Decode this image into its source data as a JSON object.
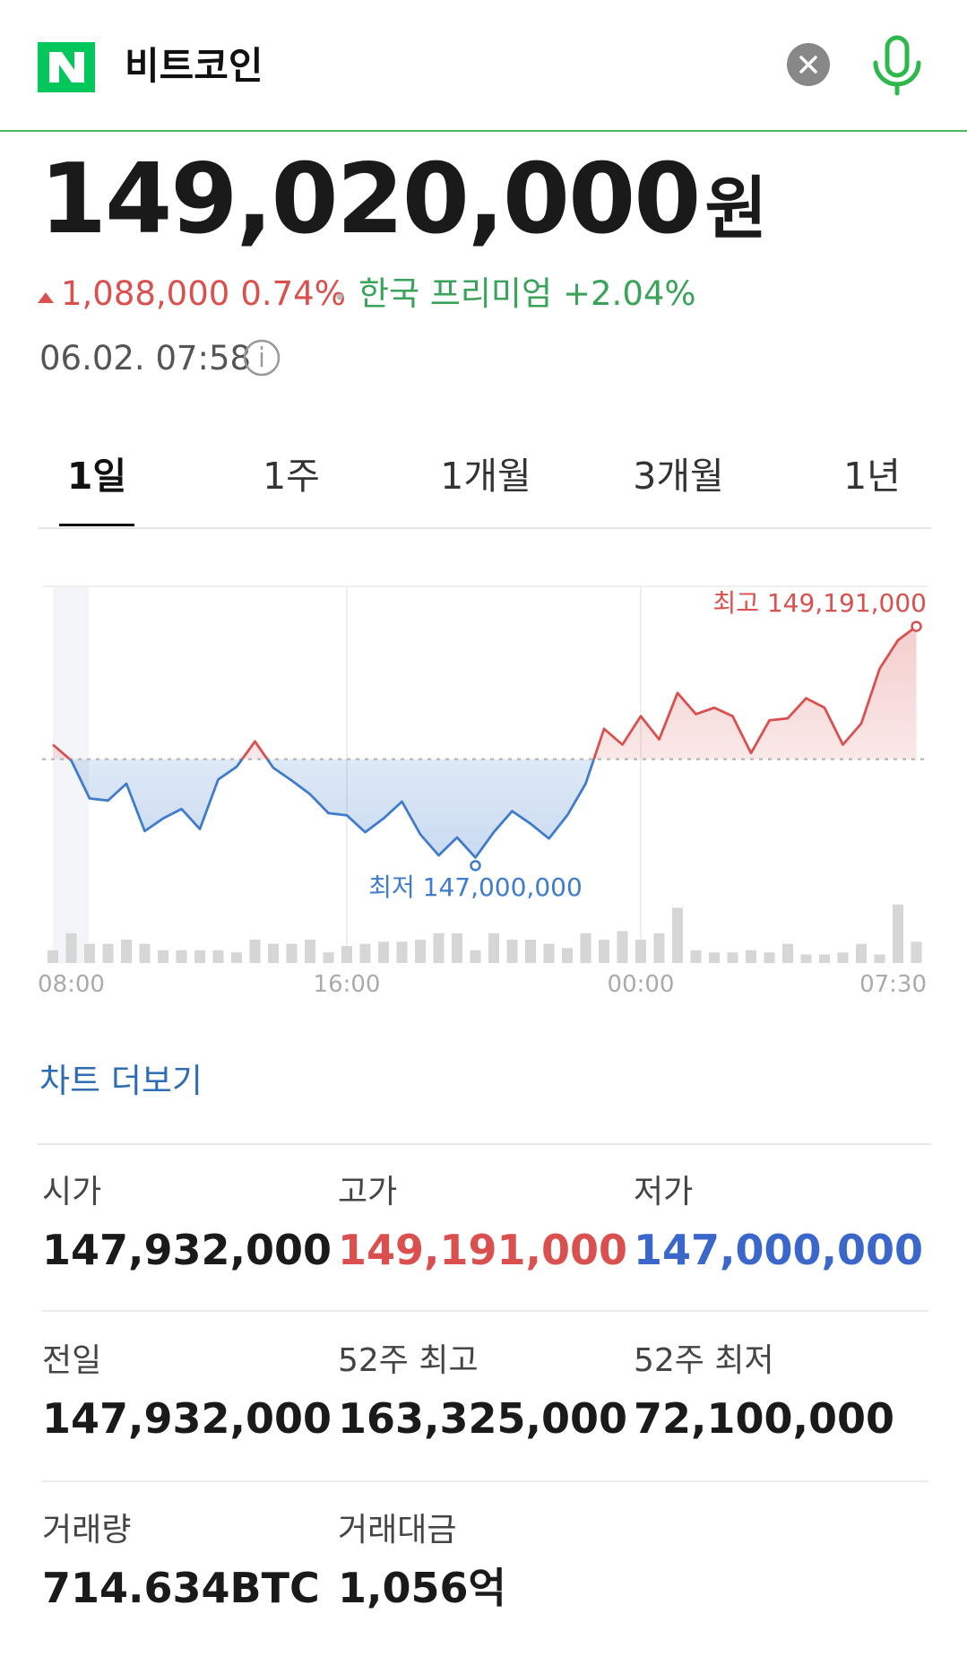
{
  "header": {
    "query": "비트코인"
  },
  "price": {
    "value": "149,020,000",
    "unit": "원",
    "change": "1,088,000",
    "change_rate": "0.74%",
    "premium_label": "한국 프리미엄",
    "premium": "+2.04%",
    "timestamp": "06.02. 07:58"
  },
  "tabs": [
    "1일",
    "1주",
    "1개월",
    "3개월",
    "1년"
  ],
  "selected_tab": 0,
  "chart_data": {
    "type": "line",
    "categories": [
      null,
      "08:00",
      null,
      null,
      null,
      null,
      null,
      null,
      null,
      null,
      null,
      null,
      null,
      null,
      null,
      null,
      "16:00",
      null,
      null,
      null,
      null,
      null,
      null,
      null,
      null,
      null,
      null,
      null,
      null,
      null,
      null,
      null,
      "00:00",
      null,
      null,
      null,
      null,
      null,
      null,
      null,
      null,
      null,
      null,
      null,
      null,
      null,
      null,
      "07:30"
    ],
    "values": [
      148070000,
      147920000,
      147560000,
      147540000,
      147700000,
      147250000,
      147370000,
      147460000,
      147270000,
      147740000,
      147860000,
      148100000,
      147850000,
      147730000,
      147600000,
      147420000,
      147400000,
      147240000,
      147370000,
      147530000,
      147220000,
      147020000,
      147190000,
      147000000,
      147240000,
      147440000,
      147320000,
      147180000,
      147400000,
      147700000,
      148220000,
      148070000,
      148340000,
      148120000,
      148560000,
      148360000,
      148420000,
      148340000,
      147990000,
      148300000,
      148320000,
      148510000,
      148420000,
      148070000,
      148270000,
      148790000,
      149060000,
      149191000
    ],
    "previous_close": 147932000,
    "ylim": [
      146000000,
      149570000
    ],
    "volume": [
      12,
      28,
      18,
      18,
      22,
      18,
      12,
      12,
      12,
      12,
      10,
      22,
      18,
      18,
      22,
      10,
      16,
      18,
      20,
      20,
      22,
      28,
      28,
      12,
      28,
      22,
      22,
      18,
      14,
      28,
      22,
      30,
      22,
      28,
      52,
      12,
      10,
      10,
      12,
      10,
      18,
      8,
      8,
      10,
      18,
      8,
      55,
      20
    ],
    "y2lim": [
      0,
      70
    ],
    "high_annotation": "최고 149,191,000",
    "low_annotation": "최저 147,000,000",
    "up_color": "#d9504f",
    "down_color": "#3f7ccc",
    "volume_color": "#d6d6d6"
  },
  "more_link": "차트 더보기",
  "stats": [
    {
      "label": "시가",
      "value": "147,932,000"
    },
    {
      "label": "고가",
      "value": "149,191,000"
    },
    {
      "label": "저가",
      "value": "147,000,000"
    },
    {
      "label": "전일",
      "value": "147,932,000"
    },
    {
      "label": "52주 최고",
      "value": "163,325,000"
    },
    {
      "label": "52주 최저",
      "value": "72,100,000"
    },
    {
      "label": "거래량",
      "value": "714.634BTC"
    },
    {
      "label": "거래대금",
      "value": "1,056억"
    }
  ]
}
